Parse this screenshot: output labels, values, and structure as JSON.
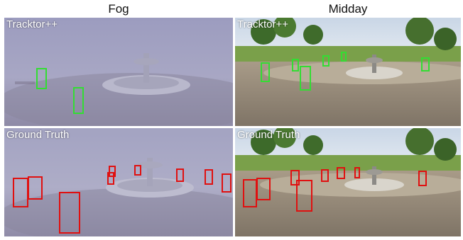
{
  "figure": {
    "columns": [
      {
        "title": "Fog",
        "id": "fog"
      },
      {
        "title": "Midday",
        "id": "midday"
      }
    ],
    "rows": [
      {
        "label": "Tracktor++",
        "id": "tracktor"
      },
      {
        "label": "Ground Truth",
        "id": "ground-truth"
      }
    ]
  },
  "colors": {
    "tracktor_box": "#33dd33",
    "ground_truth_box": "#e01010",
    "fog_sky": "#a9a9c6",
    "midday_grass": "#7aa04a"
  },
  "panels": {
    "fog_tracktor": {
      "label": "Tracktor++",
      "box_count": 2
    },
    "midday_tracktor": {
      "label": "Tracktor++",
      "box_count": 8
    },
    "fog_ground_truth": {
      "label": "Ground Truth",
      "box_count": 9
    },
    "midday_ground_truth": {
      "label": "Ground Truth",
      "box_count": 8
    }
  }
}
